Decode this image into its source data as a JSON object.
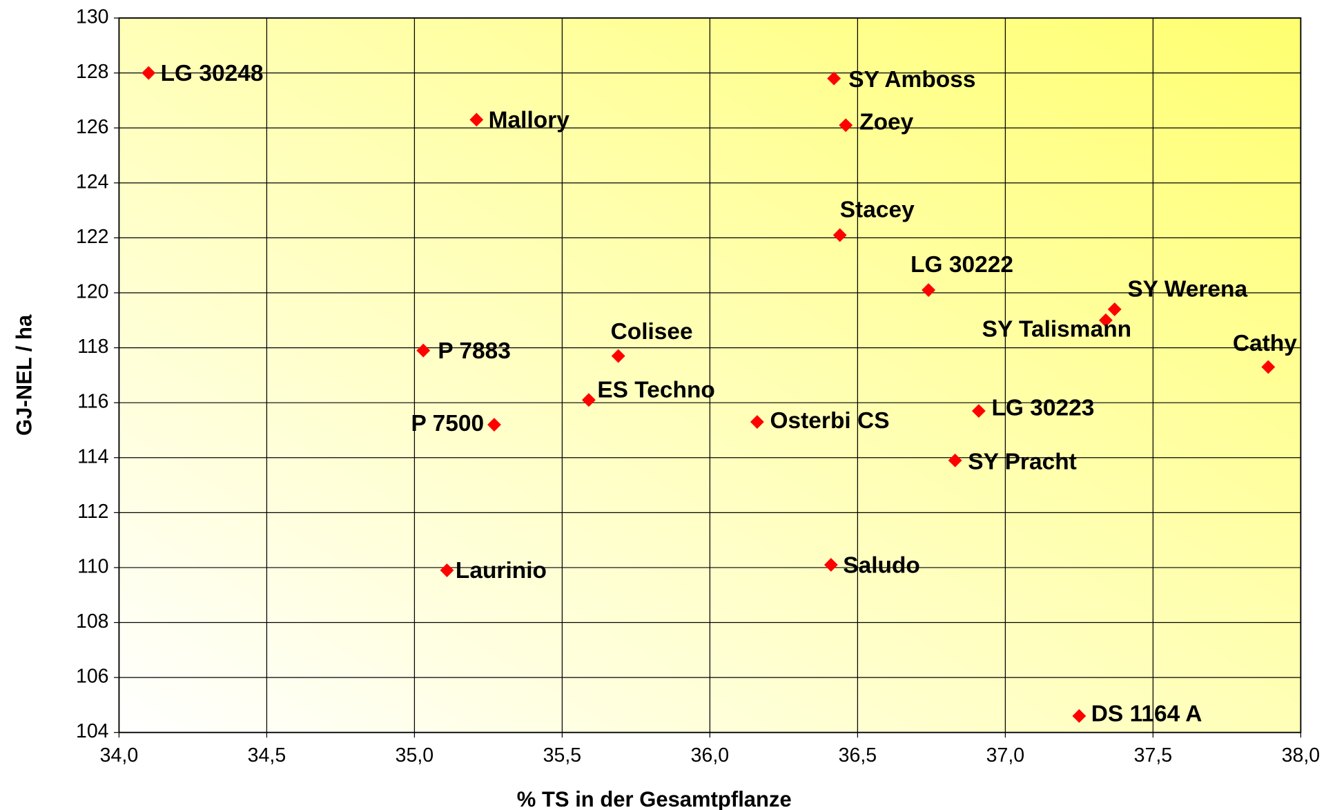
{
  "chart_data": {
    "type": "scatter",
    "x_label": "% TS in der Gesamtpflanze",
    "y_label": "GJ-NEL / ha",
    "color": "#ff0000",
    "grid": true,
    "xlim": [
      34.0,
      38.0
    ],
    "xticks": [
      {
        "value": 34.0,
        "label": "34,0"
      },
      {
        "value": 34.5,
        "label": "34,5"
      },
      {
        "value": 35.0,
        "label": "35,0"
      },
      {
        "value": 35.5,
        "label": "35,5"
      },
      {
        "value": 36.0,
        "label": "36,0"
      },
      {
        "value": 36.5,
        "label": "36,5"
      },
      {
        "value": 37.0,
        "label": "37,0"
      },
      {
        "value": 37.5,
        "label": "37,5"
      },
      {
        "value": 38.0,
        "label": "38,0"
      }
    ],
    "ylim": [
      104,
      130
    ],
    "yticks": [
      104,
      106,
      108,
      110,
      112,
      114,
      116,
      118,
      120,
      122,
      124,
      126,
      128,
      130
    ],
    "labels": [
      "LG 30248",
      "SY Amboss",
      "Mallory",
      "Zoey",
      "Stacey",
      "LG 30222",
      "SY Werena",
      "SY Talismann",
      "Cathy",
      "P 7883",
      "Colisee",
      "ES Techno",
      "P 7500",
      "Osterbi CS",
      "LG 30223",
      "SY Pracht",
      "Laurinio",
      "Saludo",
      "DS 1164 A"
    ],
    "x": [
      34.1,
      36.42,
      35.21,
      36.46,
      36.44,
      36.74,
      37.37,
      37.34,
      37.89,
      35.03,
      35.69,
      35.59,
      35.27,
      36.16,
      36.91,
      36.83,
      35.11,
      36.41,
      37.25
    ],
    "values": [
      128.0,
      127.8,
      126.3,
      126.1,
      122.1,
      120.1,
      119.4,
      119.0,
      117.3,
      117.9,
      117.7,
      116.1,
      115.2,
      115.3,
      115.7,
      113.9,
      109.9,
      110.1,
      104.6
    ]
  }
}
